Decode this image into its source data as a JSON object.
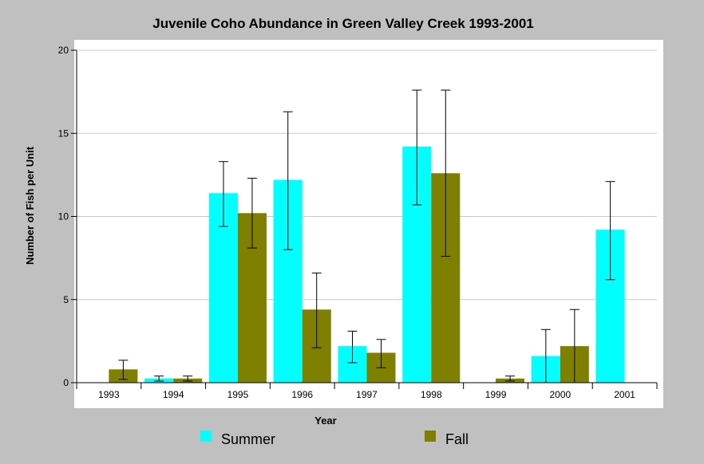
{
  "chart_data": {
    "type": "bar",
    "title": "Juvenile Coho Abundance in Green Valley Creek 1993-2001",
    "xlabel": "Year",
    "ylabel": "Number of Fish per Unit",
    "ylim": [
      0,
      20
    ],
    "yticks": [
      0,
      5,
      10,
      15,
      20
    ],
    "grid": true,
    "legend_position": "bottom",
    "categories": [
      "1993",
      "1994",
      "1995",
      "1996",
      "1997",
      "1998",
      "1999",
      "2000",
      "2001"
    ],
    "series": [
      {
        "name": "Summer",
        "color": "#00ffff",
        "values": [
          null,
          0.25,
          11.4,
          12.2,
          2.2,
          14.2,
          null,
          1.6,
          9.2
        ],
        "error_low": [
          null,
          0.1,
          9.4,
          8.0,
          1.2,
          10.7,
          null,
          0.0,
          6.2
        ],
        "error_high": [
          null,
          0.4,
          13.3,
          16.3,
          3.1,
          17.6,
          null,
          3.2,
          12.1
        ]
      },
      {
        "name": "Fall",
        "color": "#808000",
        "values": [
          0.8,
          0.25,
          10.2,
          4.4,
          1.8,
          12.6,
          0.25,
          2.2,
          null
        ],
        "error_low": [
          0.2,
          0.1,
          8.1,
          2.1,
          0.9,
          7.6,
          0.1,
          0.0,
          null
        ],
        "error_high": [
          1.35,
          0.4,
          12.3,
          6.6,
          2.6,
          17.6,
          0.4,
          4.4,
          null
        ]
      }
    ]
  }
}
